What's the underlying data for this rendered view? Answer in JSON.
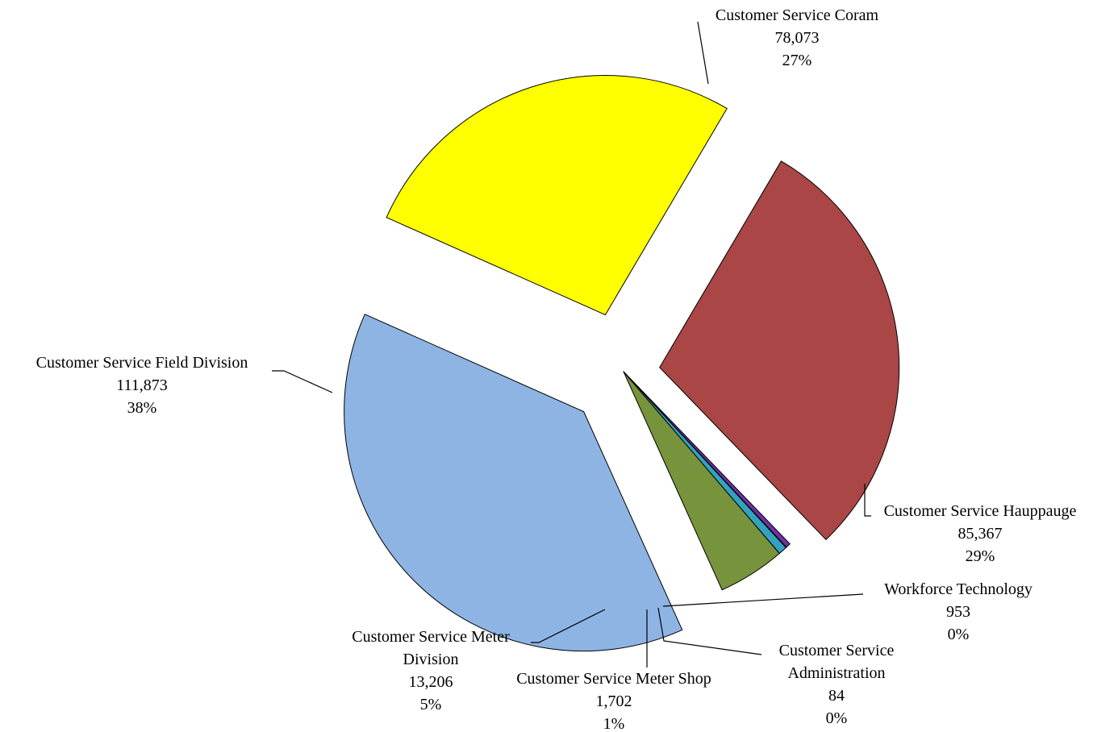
{
  "chart_data": {
    "type": "pie",
    "title": "",
    "legend": "none",
    "slices": [
      {
        "name": "Customer Service Coram",
        "value": 78073,
        "value_label": "78,073",
        "percent_label": "27%",
        "color": "#FFFF00",
        "exploded": true
      },
      {
        "name": "Customer Service Hauppauge",
        "value": 85367,
        "value_label": "85,367",
        "percent_label": "29%",
        "color": "#AA4646",
        "exploded": true
      },
      {
        "name": "Workforce Technology",
        "value": 953,
        "value_label": "953",
        "percent_label": "0%",
        "color": "#7030A0",
        "exploded": false
      },
      {
        "name": "Customer Service Administration",
        "value": 84,
        "value_label": "84",
        "percent_label": "0%",
        "color": "#1F3864",
        "exploded": false
      },
      {
        "name": "Customer Service Meter Shop",
        "value": 1702,
        "value_label": "1,702",
        "percent_label": "1%",
        "color": "#31A3C0",
        "exploded": false
      },
      {
        "name": "Customer Service Meter Division",
        "value": 13206,
        "value_label": "13,206",
        "percent_label": "5%",
        "color": "#77933C",
        "exploded": false
      },
      {
        "name": "Customer Service Field Division",
        "value": 111873,
        "value_label": "111,873",
        "percent_label": "38%",
        "color": "#8EB4E3",
        "exploded": true
      }
    ]
  }
}
